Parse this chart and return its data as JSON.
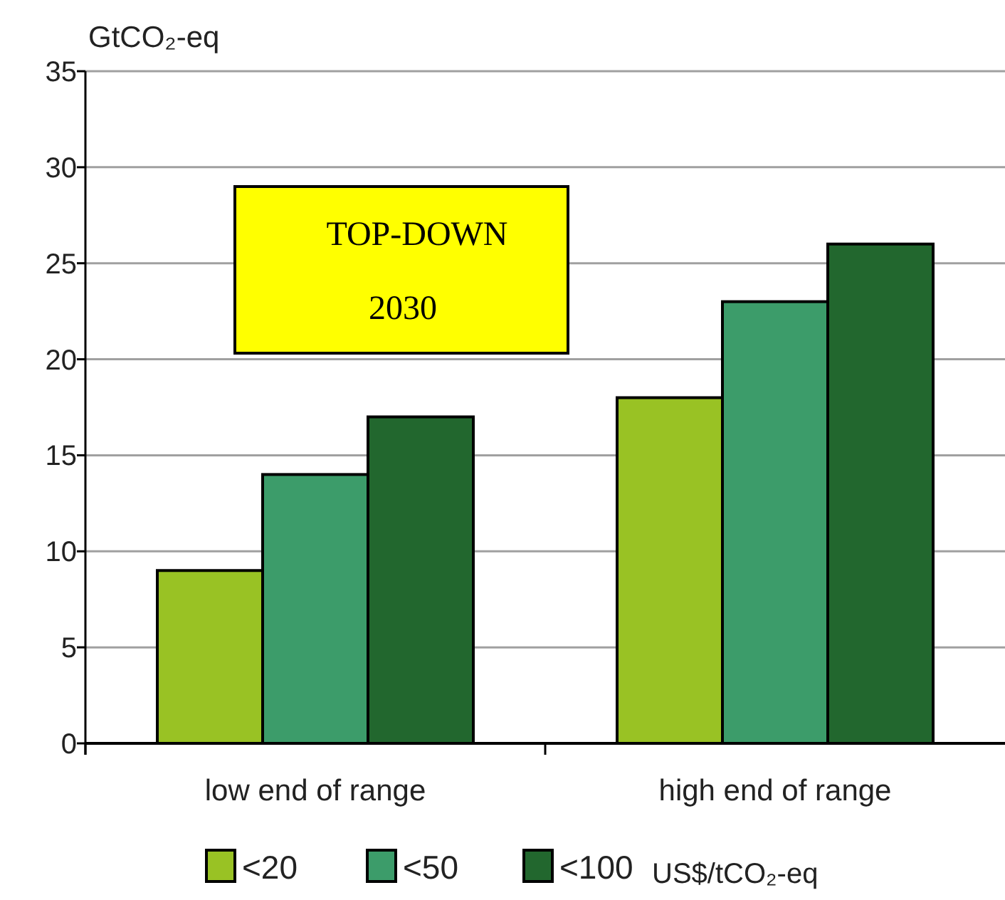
{
  "chart_data": {
    "type": "bar",
    "ylabel": "GtCO₂-eq",
    "legend_title": "US$/tCO₂-eq",
    "categories": [
      "low end of range",
      "high end of range"
    ],
    "series": [
      {
        "name": "<20",
        "color": "#99c224",
        "values": [
          9,
          18
        ]
      },
      {
        "name": "<50",
        "color": "#3c9c6a",
        "values": [
          14,
          23
        ]
      },
      {
        "name": "<100",
        "color": "#22672e",
        "values": [
          17,
          26
        ]
      }
    ],
    "ylim": [
      0,
      35
    ],
    "yticks": [
      0,
      5,
      10,
      15,
      20,
      25,
      30,
      35
    ],
    "grid": "y",
    "legend": "bottom",
    "annotations": [
      "TOP-DOWN",
      "2030"
    ]
  }
}
